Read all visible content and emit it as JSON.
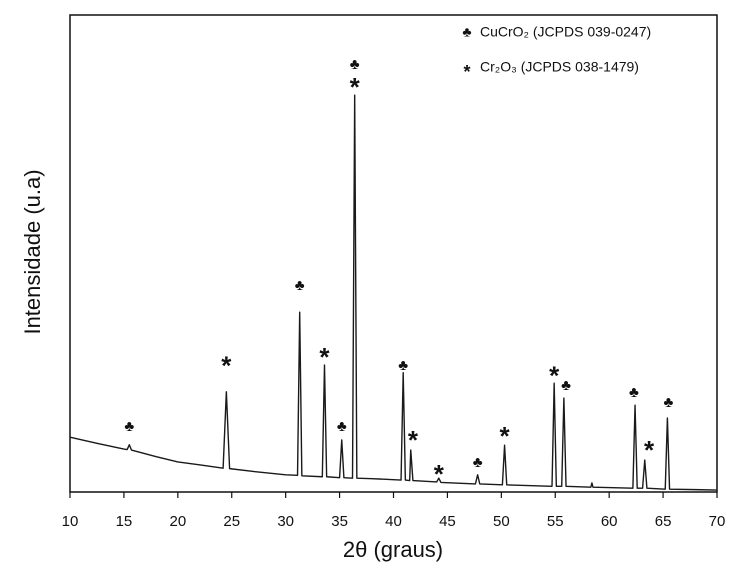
{
  "chart_data": {
    "type": "line",
    "x_label": "2θ (graus)",
    "y_label": "Intensidade (u.a)",
    "xlim": [
      10,
      70
    ],
    "xticks": [
      10,
      15,
      20,
      25,
      30,
      35,
      40,
      45,
      50,
      55,
      60,
      65,
      70
    ],
    "ylim": [
      0,
      100
    ],
    "color": "#1a1a1a",
    "x": [
      10,
      12.5,
      15,
      15.3,
      15.5,
      15.7,
      18,
      20,
      22,
      24.2,
      24.5,
      24.8,
      27,
      30,
      31.1,
      31.3,
      31.5,
      33.4,
      33.6,
      33.8,
      35.0,
      35.2,
      35.4,
      36.2,
      36.4,
      36.6,
      38,
      40.7,
      40.9,
      41.1,
      41.5,
      41.6,
      41.8,
      44.0,
      44.2,
      44.4,
      47.6,
      47.8,
      48.0,
      50.1,
      50.3,
      50.5,
      54.7,
      54.9,
      55.1,
      55.6,
      55.8,
      56.0,
      58.3,
      58.4,
      58.5,
      62.2,
      62.4,
      62.6,
      63.1,
      63.3,
      63.5,
      65.2,
      65.4,
      65.6,
      68,
      70
    ],
    "values": [
      11.5,
      10.2,
      9,
      8.9,
      9.9,
      8.8,
      7.4,
      6.3,
      5.7,
      5.0,
      21,
      4.9,
      4.3,
      3.6,
      3.5,
      37.7,
      3.4,
      3.2,
      26.6,
      3.2,
      3.0,
      10.9,
      3.0,
      2.9,
      83.2,
      2.9,
      2.8,
      2.5,
      25,
      2.5,
      2.4,
      8.8,
      2.4,
      2.1,
      2.9,
      2.0,
      1.7,
      3.6,
      1.7,
      1.5,
      9.8,
      1.5,
      1.2,
      22.8,
      1.2,
      1.2,
      19.7,
      1.2,
      1.0,
      1.9,
      1.0,
      0.8,
      18.2,
      0.8,
      0.8,
      6.7,
      0.8,
      0.6,
      15.5,
      0.6,
      0.5,
      0.4
    ],
    "legend": [
      {
        "symbol": "♣",
        "label": "CuCrO₂ (JCPDS 039-0247)"
      },
      {
        "symbol": "*",
        "label": "Cr₂O₃ (JCPDS 038-1479)"
      }
    ],
    "annotations": [
      {
        "text": "♣",
        "x": 15.5,
        "y": 13.6
      },
      {
        "text": "*",
        "x": 24.5,
        "y": 27.3
      },
      {
        "text": "♣",
        "x": 31.3,
        "y": 43.2
      },
      {
        "text": "*",
        "x": 33.6,
        "y": 29.1
      },
      {
        "text": "♣",
        "x": 35.2,
        "y": 13.6
      },
      {
        "text": "♣",
        "x": 36.4,
        "y": 89.5
      },
      {
        "text": "*",
        "x": 36.4,
        "y": 85.7
      },
      {
        "text": "♣",
        "x": 40.9,
        "y": 26.4
      },
      {
        "text": "*",
        "x": 41.8,
        "y": 11.7
      },
      {
        "text": "*",
        "x": 44.2,
        "y": 4.6
      },
      {
        "text": "♣",
        "x": 47.8,
        "y": 6.1
      },
      {
        "text": "*",
        "x": 50.3,
        "y": 12.6
      },
      {
        "text": "*",
        "x": 54.9,
        "y": 25.2
      },
      {
        "text": "♣",
        "x": 56.0,
        "y": 22.2
      },
      {
        "text": "♣",
        "x": 62.3,
        "y": 20.8
      },
      {
        "text": "*",
        "x": 63.7,
        "y": 9.6
      },
      {
        "text": "♣",
        "x": 65.5,
        "y": 18.7
      }
    ]
  }
}
